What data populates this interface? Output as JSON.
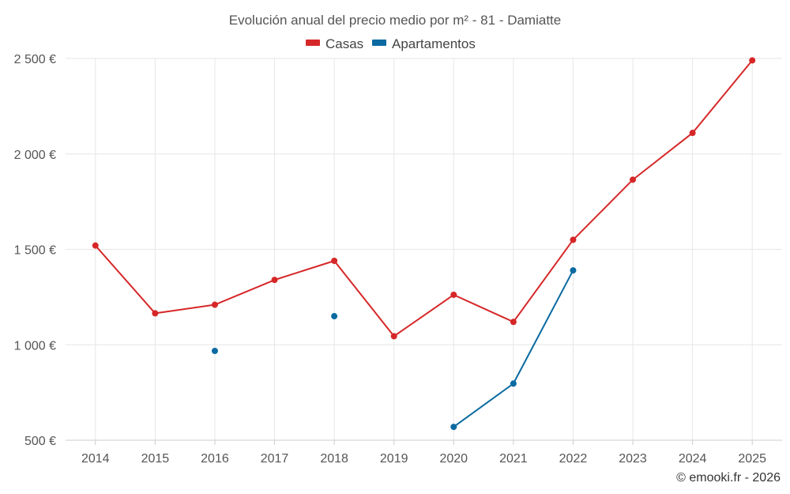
{
  "chart_data": {
    "type": "line",
    "title": "Evolución anual del precio medio por m² - 81 - Damiatte",
    "categories": [
      "2014",
      "2015",
      "2016",
      "2017",
      "2018",
      "2019",
      "2020",
      "2021",
      "2022",
      "2023",
      "2024",
      "2025"
    ],
    "series": [
      {
        "name": "Casas",
        "color": "#d62728",
        "values": [
          1520,
          1165,
          1210,
          1340,
          1440,
          1045,
          1262,
          1120,
          1550,
          1865,
          2110,
          2490
        ]
      },
      {
        "name": "Apartamentos",
        "color": "#0a6aa1",
        "values": [
          null,
          null,
          968,
          null,
          1150,
          null,
          570,
          797,
          1390,
          null,
          null,
          null
        ]
      }
    ],
    "ylim": [
      500,
      2500
    ],
    "yticks": [
      500,
      1000,
      1500,
      2000,
      2500
    ],
    "ytick_labels": [
      "500 €",
      "1 000 €",
      "1 500 €",
      "2 000 €",
      "2 500 €"
    ],
    "grid": true,
    "legend": "top-center",
    "credit": "© emooki.fr - 2026"
  }
}
